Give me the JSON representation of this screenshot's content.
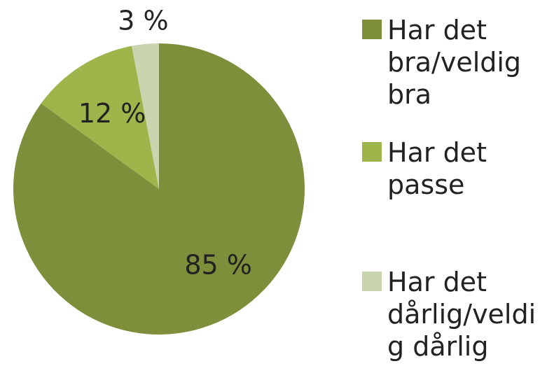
{
  "chart_data": {
    "type": "pie",
    "categories": [
      "Har det bra/veldig bra",
      "Har det passe",
      "Har det dårlig/veldig dårlig"
    ],
    "values": [
      85,
      12,
      3
    ],
    "value_labels": [
      "85 %",
      "12 %",
      "3 %"
    ],
    "colors": [
      "#7d8f3a",
      "#9db54a",
      "#c9d5ae"
    ],
    "legend": "right"
  }
}
